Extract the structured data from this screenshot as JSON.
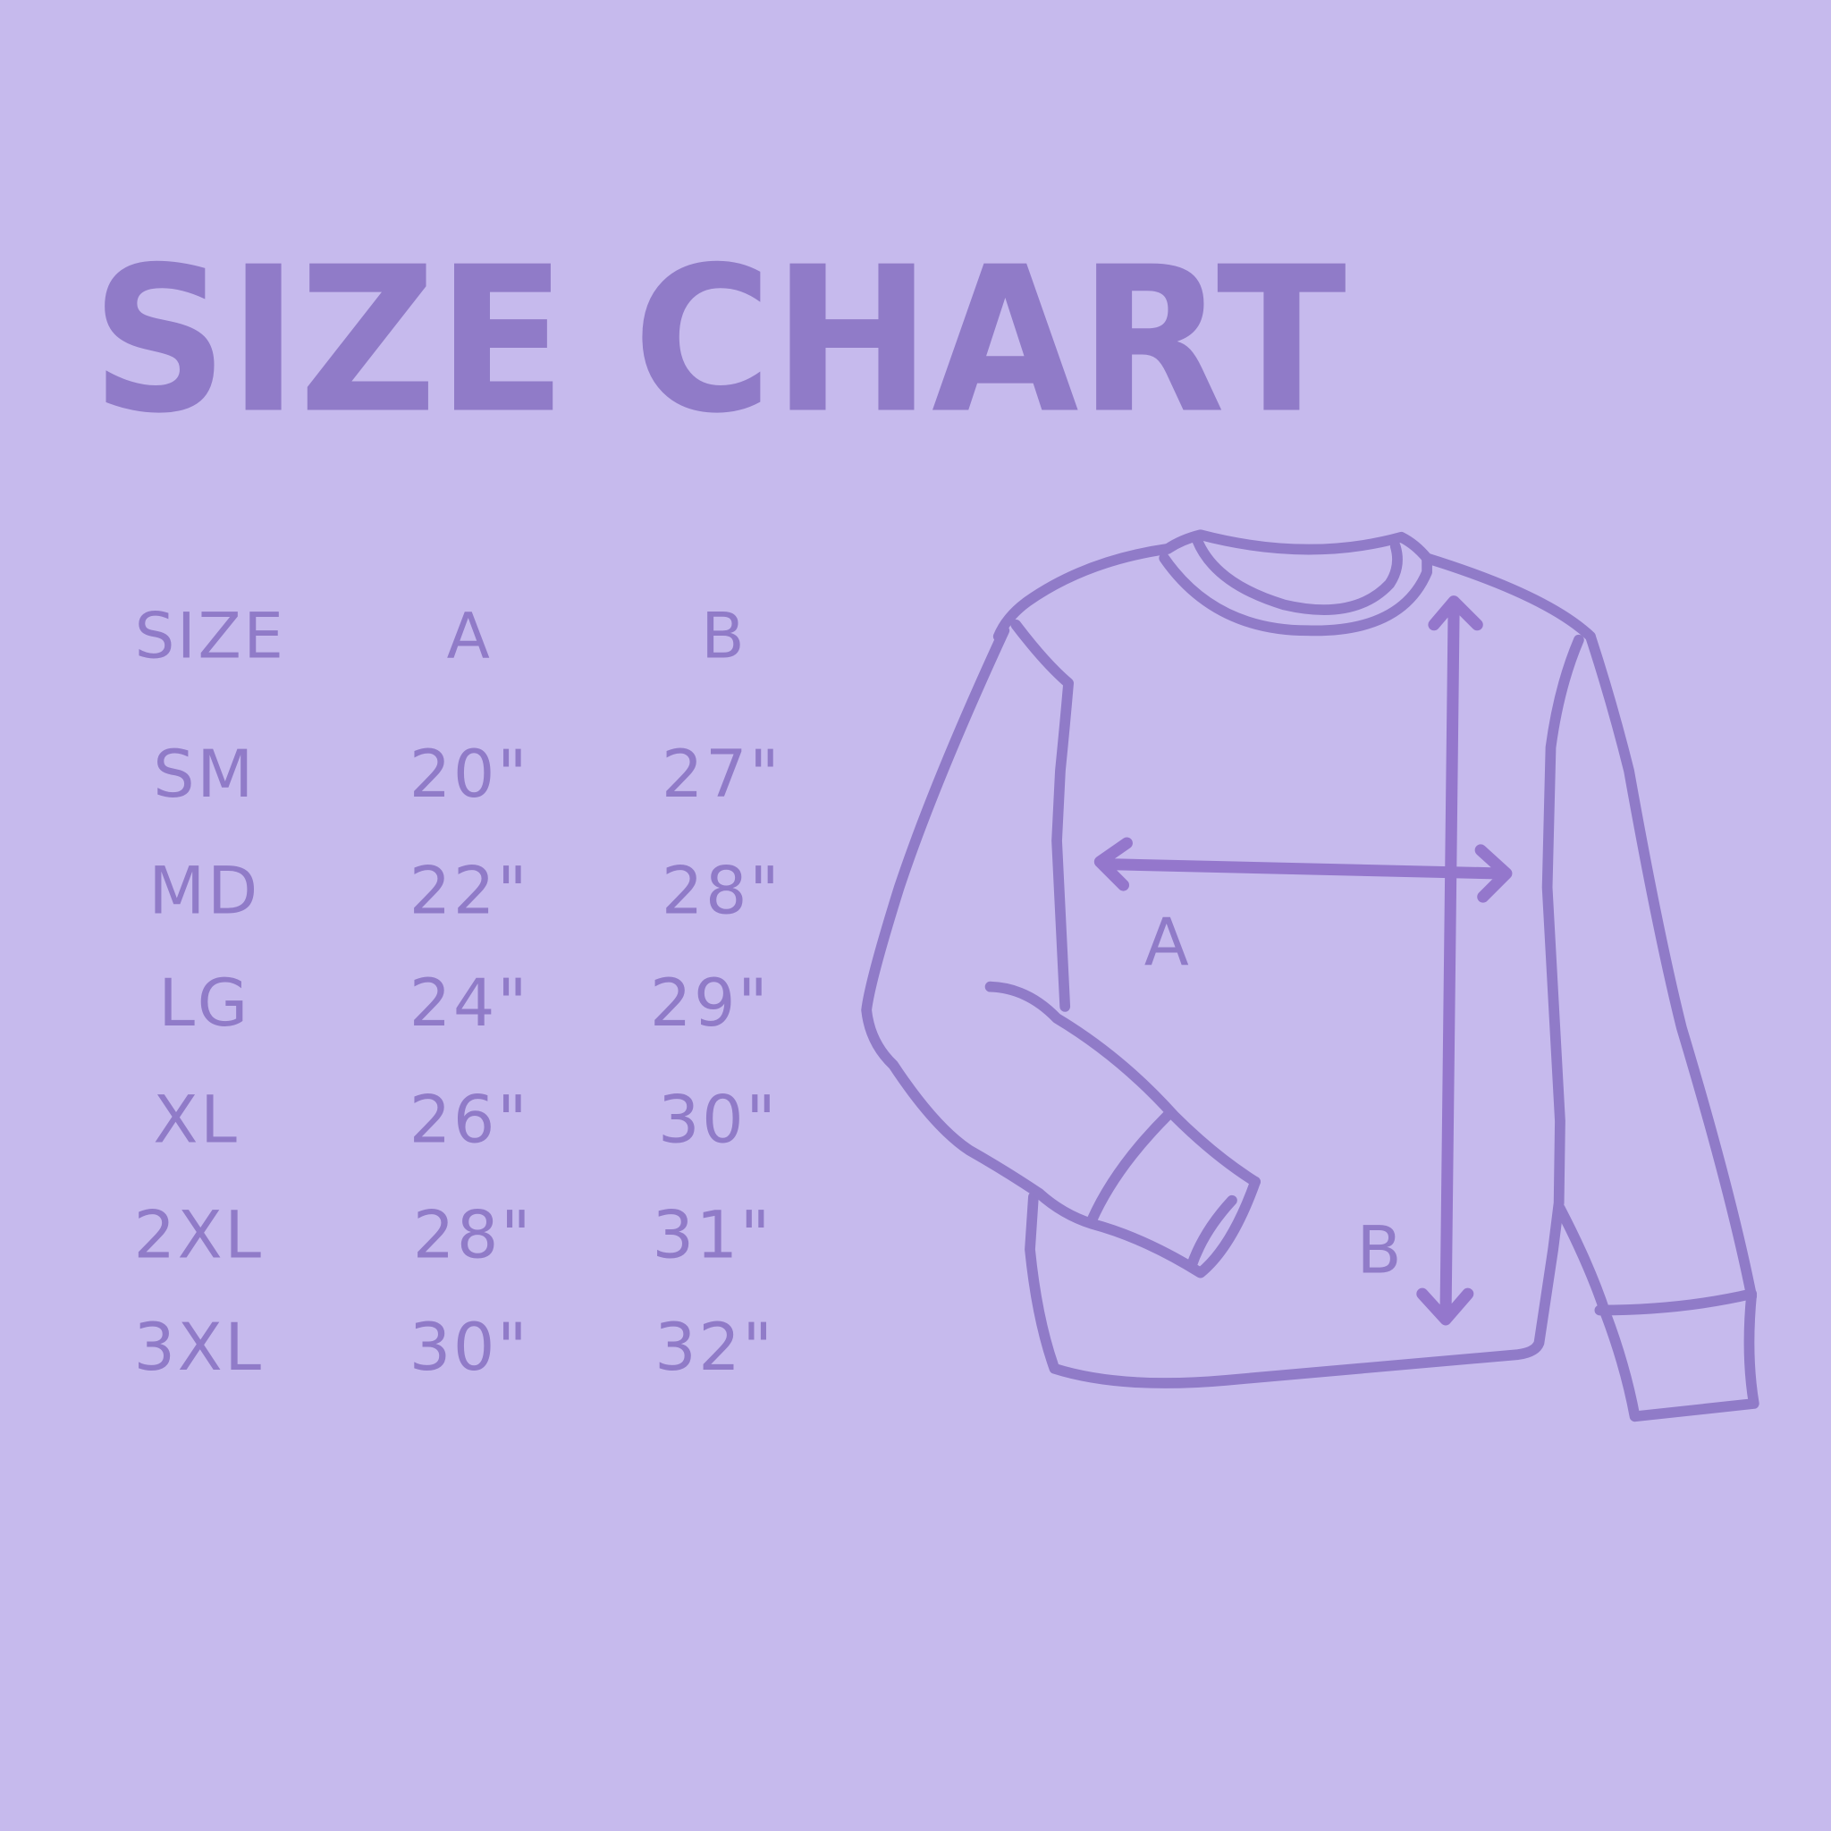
{
  "title": "SIZE CHART",
  "colors": {
    "background": "#c6baed",
    "accent": "#907bc8"
  },
  "table": {
    "headers": [
      "SIZE",
      "A",
      "B"
    ],
    "rows": [
      {
        "size": "SM",
        "a": "20\"",
        "b": "27\""
      },
      {
        "size": "MD",
        "a": "22\"",
        "b": "28\""
      },
      {
        "size": "LG",
        "a": "24\"",
        "b": "29\""
      },
      {
        "size": "XL",
        "a": "26\"",
        "b": "30\""
      },
      {
        "size": "2XL",
        "a": "28\"",
        "b": "31\""
      },
      {
        "size": "3XL",
        "a": "30\"",
        "b": "32\""
      }
    ]
  },
  "diagram": {
    "label_a": "A",
    "label_b": "B",
    "garment": "long-sleeve sweatshirt"
  }
}
